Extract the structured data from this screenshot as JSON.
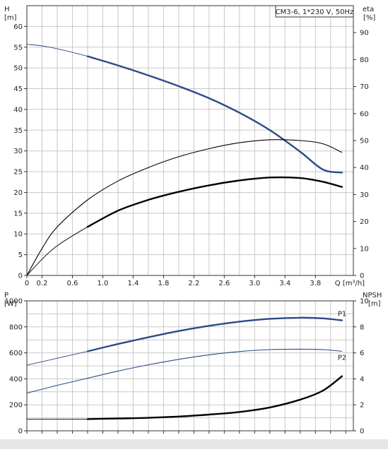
{
  "chart_data": [
    {
      "type": "line",
      "title": "CM3-6, 1*230 V, 50Hz",
      "xlabel": "Q [m³/h]",
      "ylabel_left": [
        "H",
        "[m]"
      ],
      "ylabel_right": [
        "eta",
        "[%]"
      ],
      "xlim": [
        0,
        4.3
      ],
      "ylim_left": [
        0,
        65
      ],
      "ylim_right": [
        0,
        100
      ],
      "x_ticks": [
        "0",
        "0.2",
        "0.6",
        "1.0",
        "1.4",
        "1.8",
        "2.2",
        "2.6",
        "3.0",
        "3.4",
        "3.8"
      ],
      "y_ticks_left": [
        "0",
        "5",
        "10",
        "15",
        "20",
        "25",
        "30",
        "35",
        "40",
        "45",
        "50",
        "55",
        "60"
      ],
      "y_ticks_right": [
        "0",
        "10",
        "20",
        "30",
        "40",
        "50",
        "60",
        "70",
        "80",
        "90"
      ],
      "grid": true,
      "series": [
        {
          "axis": "left",
          "color": "#2b4a86",
          "thick": true,
          "x": [
            0,
            0.3,
            0.8,
            1.2,
            1.6,
            2.0,
            2.4,
            2.8,
            3.2,
            3.6,
            3.9,
            4.15
          ],
          "y": [
            55.7,
            55.0,
            52.8,
            50.6,
            48.2,
            45.6,
            42.7,
            39.2,
            35.0,
            29.8,
            25.5,
            24.8
          ],
          "solid_from": 0.8
        },
        {
          "axis": "right",
          "color": "#000000",
          "thick": false,
          "x": [
            0,
            0.2,
            0.4,
            0.8,
            1.2,
            1.6,
            2.0,
            2.4,
            2.8,
            3.2,
            3.6,
            3.9,
            4.15
          ],
          "y": [
            0,
            10,
            18,
            28,
            35,
            40,
            44,
            47,
            49.2,
            50.3,
            50.0,
            48.8,
            45.6
          ]
        },
        {
          "axis": "right",
          "color": "#000000",
          "thick": true,
          "x": [
            0,
            0.2,
            0.4,
            0.8,
            1.2,
            1.6,
            2.0,
            2.4,
            2.8,
            3.2,
            3.6,
            3.9,
            4.15
          ],
          "y": [
            0,
            6,
            11,
            18,
            24,
            28,
            31,
            33.4,
            35.2,
            36.3,
            36.1,
            34.7,
            32.8
          ],
          "solid_from": 0.8
        }
      ]
    },
    {
      "type": "line",
      "ylabel_left": [
        "P",
        "[W]"
      ],
      "ylabel_right": [
        "NPSH",
        "[m]"
      ],
      "xlim": [
        0,
        4.3
      ],
      "ylim_left": [
        0,
        1000
      ],
      "ylim_right": [
        0,
        10
      ],
      "y_ticks_left": [
        "0",
        "200",
        "400",
        "600",
        "800",
        "1000"
      ],
      "y_ticks_right": [
        "0",
        "2",
        "4",
        "6",
        "8",
        "10"
      ],
      "grid": true,
      "series": [
        {
          "name": "P1",
          "axis": "left",
          "color": "#2b4a86",
          "thick": true,
          "x": [
            0,
            0.8,
            1.2,
            1.6,
            2.0,
            2.4,
            2.8,
            3.2,
            3.6,
            3.9,
            4.15
          ],
          "y": [
            505,
            612,
            668,
            720,
            768,
            808,
            840,
            862,
            870,
            865,
            850
          ],
          "solid_from": 0.8
        },
        {
          "name": "P2",
          "axis": "left",
          "color": "#2b4a86",
          "thick": false,
          "x": [
            0,
            0.4,
            0.8,
            1.2,
            1.6,
            2.0,
            2.4,
            2.8,
            3.2,
            3.6,
            3.9,
            4.15
          ],
          "y": [
            290,
            350,
            405,
            460,
            508,
            550,
            585,
            610,
            625,
            628,
            625,
            612
          ]
        },
        {
          "name": "NPSH",
          "axis": "right",
          "color": "#000000",
          "thick": true,
          "x": [
            0,
            0.8,
            1.2,
            1.6,
            2.0,
            2.4,
            2.8,
            3.2,
            3.6,
            3.9,
            4.15
          ],
          "y": [
            0.9,
            0.9,
            0.95,
            1.0,
            1.1,
            1.25,
            1.45,
            1.8,
            2.4,
            3.1,
            4.2
          ],
          "solid_from": 0.8
        }
      ]
    }
  ]
}
